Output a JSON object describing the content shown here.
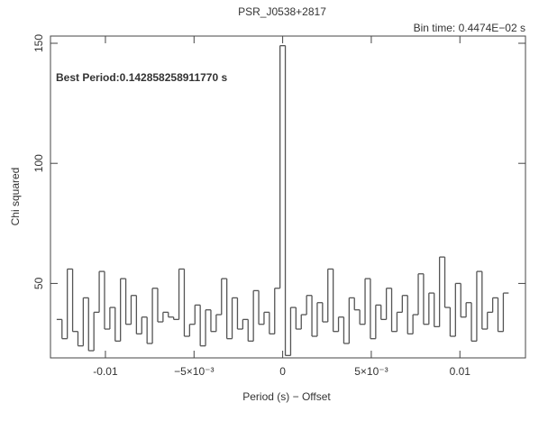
{
  "chart_data": {
    "type": "step",
    "title": "PSR_J0538+2817",
    "subtitle": "Bin time:   0.4474E−02 s",
    "annotation": "Best Period:0.142858258911770 s",
    "xlabel": "Period (s) − Offset",
    "ylabel": "Chi squared",
    "color": "#555555",
    "xlim": [
      -0.0131,
      0.0137
    ],
    "ylim": [
      19,
      153
    ],
    "xticks": [
      -0.01,
      {
        "value": -0.005,
        "label": "−5×10⁻³"
      },
      0,
      {
        "value": 0.005,
        "label": "5×10⁻³"
      },
      0.01
    ],
    "yticks": [
      50,
      100,
      150
    ],
    "x": [
      -0.0126,
      -0.0123,
      -0.012,
      -0.0117,
      -0.0114,
      -0.0111,
      -0.0108,
      -0.0105,
      -0.0102,
      -0.0099,
      -0.0096,
      -0.0093,
      -0.009,
      -0.0087,
      -0.0084,
      -0.0081,
      -0.0078,
      -0.0075,
      -0.0072,
      -0.0069,
      -0.0066,
      -0.0063,
      -0.006,
      -0.0057,
      -0.0054,
      -0.0051,
      -0.0048,
      -0.0045,
      -0.0042,
      -0.0039,
      -0.0036,
      -0.0033,
      -0.003,
      -0.0027,
      -0.0024,
      -0.0021,
      -0.0018,
      -0.0015,
      -0.0012,
      -0.0009,
      -0.0006,
      -0.0003,
      0,
      0.0003,
      0.0006,
      0.0009,
      0.0012,
      0.0015,
      0.0018,
      0.0021,
      0.0024,
      0.0027,
      0.003,
      0.0033,
      0.0036,
      0.0039,
      0.0042,
      0.0045,
      0.0048,
      0.0051,
      0.0054,
      0.0057,
      0.006,
      0.0063,
      0.0066,
      0.0069,
      0.0072,
      0.0075,
      0.0078,
      0.0081,
      0.0084,
      0.0087,
      0.009,
      0.0093,
      0.0096,
      0.0099,
      0.0102,
      0.0105,
      0.0108,
      0.0111,
      0.0114,
      0.0117,
      0.012,
      0.0123,
      0.0126
    ],
    "values": [
      35,
      27,
      56,
      30,
      24,
      44,
      22,
      38,
      55,
      31,
      40,
      26,
      52,
      33,
      45,
      29,
      36,
      25,
      48,
      34,
      38,
      36,
      35,
      56,
      28,
      33,
      41,
      24,
      39,
      30,
      37,
      52,
      27,
      44,
      31,
      35,
      26,
      47,
      33,
      38,
      29,
      48,
      149,
      20,
      40,
      31,
      37,
      45,
      28,
      42,
      34,
      56,
      30,
      36,
      25,
      44,
      39,
      33,
      52,
      27,
      41,
      35,
      48,
      30,
      38,
      45,
      29,
      37,
      54,
      33,
      46,
      32,
      61,
      40,
      28,
      50,
      36,
      42,
      26,
      55,
      31,
      38,
      44,
      30,
      46
    ]
  }
}
